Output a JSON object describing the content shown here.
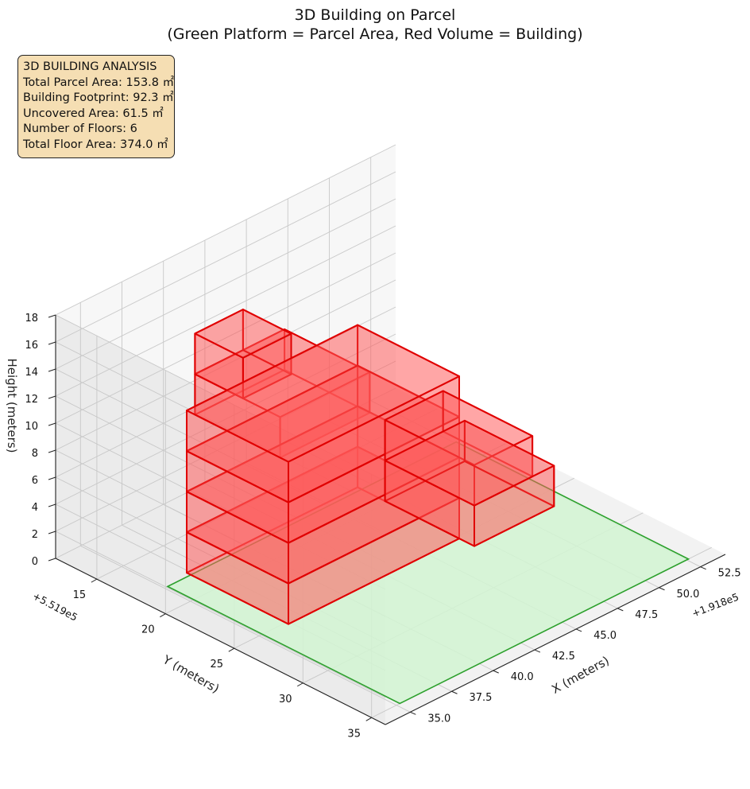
{
  "chart_data": {
    "type": "3d-box",
    "title": "3D Building on Parcel",
    "subtitle": "(Green Platform = Parcel Area, Red Volume = Building)",
    "xlabel": "X (meters)",
    "ylabel": "Y (meters)",
    "zlabel": "Height (meters)",
    "x_offset_label": "+1.918e5",
    "y_offset_label": "+5.519e5",
    "x_ticks": [
      "35.0",
      "37.5",
      "40.0",
      "42.5",
      "45.0",
      "47.5",
      "50.0",
      "52.5"
    ],
    "y_ticks": [
      "15",
      "20",
      "25",
      "30",
      "35"
    ],
    "z_ticks": [
      "0",
      "2",
      "4",
      "6",
      "8",
      "10",
      "12",
      "14",
      "16",
      "18"
    ],
    "xlim": [
      33.5,
      54.0
    ],
    "ylim": [
      12.0,
      36.0
    ],
    "zlim": [
      0,
      18
    ],
    "grid": true,
    "colors": {
      "parcel": "#2ca02c",
      "parcel_fill": "#d2f5d2",
      "building": "#e00000",
      "building_fill": "#ff5a5a",
      "info_box": "#f5deb3"
    },
    "parcel": {
      "x": [
        35.2,
        52.6
      ],
      "y": [
        18.1,
        35.0
      ],
      "z": 0
    },
    "floors": [
      {
        "floor": 1,
        "z": [
          0,
          3
        ],
        "x": [
          46.9,
          51.7
        ],
        "y": [
          19.8,
          26.3
        ]
      },
      {
        "floor": 1,
        "z": [
          0,
          3
        ],
        "x": [
          36.6,
          46.9
        ],
        "y": [
          17.8,
          25.2
        ]
      },
      {
        "floor": 2,
        "z": [
          3,
          6
        ],
        "x": [
          36.6,
          46.9
        ],
        "y": [
          17.8,
          25.2
        ]
      },
      {
        "floor": 2,
        "z": [
          3,
          6
        ],
        "x": [
          46.9,
          50.4
        ],
        "y": [
          19.8,
          26.3
        ]
      },
      {
        "floor": 3,
        "z": [
          6,
          9
        ],
        "x": [
          36.6,
          46.9
        ],
        "y": [
          17.8,
          25.2
        ]
      },
      {
        "floor": 4,
        "z": [
          9,
          12
        ],
        "x": [
          36.6,
          46.9
        ],
        "y": [
          17.8,
          25.2
        ]
      },
      {
        "floor": 5,
        "z": [
          12,
          15
        ],
        "x": [
          36.6,
          42.0
        ],
        "y": [
          18.4,
          24.6
        ]
      },
      {
        "floor": 6,
        "z": [
          15,
          18
        ],
        "x": [
          36.6,
          39.5
        ],
        "y": [
          18.4,
          21.9
        ]
      }
    ]
  },
  "info_box": {
    "heading": "3D BUILDING ANALYSIS",
    "total_parcel_area": "Total Parcel Area: 153.8 ㎡",
    "building_footprint": "Building Footprint: 92.3 ㎡",
    "uncovered_area": "Uncovered Area: 61.5 ㎡",
    "number_of_floors": "Number of Floors: 6",
    "total_floor_area": "Total Floor Area: 374.0 ㎡"
  }
}
